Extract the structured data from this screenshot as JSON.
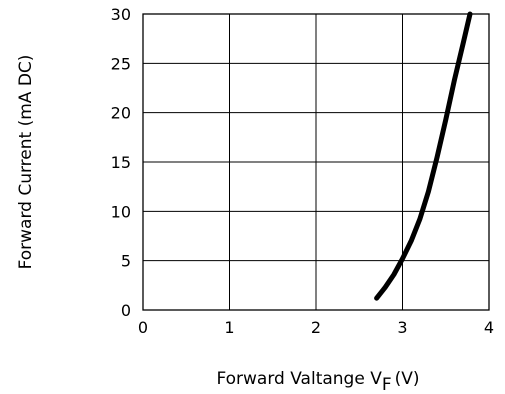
{
  "chart_data": {
    "type": "line",
    "title": "",
    "xlabel": "Forward Valtange V",
    "xlabel_subscript": "F",
    "xlabel_unit": "(V)",
    "ylabel": "Forward Current (mA DC)",
    "xlim": [
      0,
      4
    ],
    "ylim": [
      0,
      30
    ],
    "x_ticks": [
      "0",
      "1",
      "2",
      "3",
      "4"
    ],
    "y_ticks": [
      "0",
      "5",
      "10",
      "15",
      "20",
      "25",
      "30"
    ],
    "grid": true,
    "legend": "none",
    "line_color": "#000000",
    "series": [
      {
        "x": [
          2.7,
          2.8,
          2.9,
          3.0,
          3.1,
          3.2,
          3.3,
          3.4,
          3.5,
          3.6,
          3.7,
          3.78
        ],
        "y": [
          1.2,
          2.3,
          3.6,
          5.2,
          7.0,
          9.2,
          12.0,
          15.5,
          19.3,
          23.3,
          27.0,
          30
        ]
      }
    ]
  }
}
